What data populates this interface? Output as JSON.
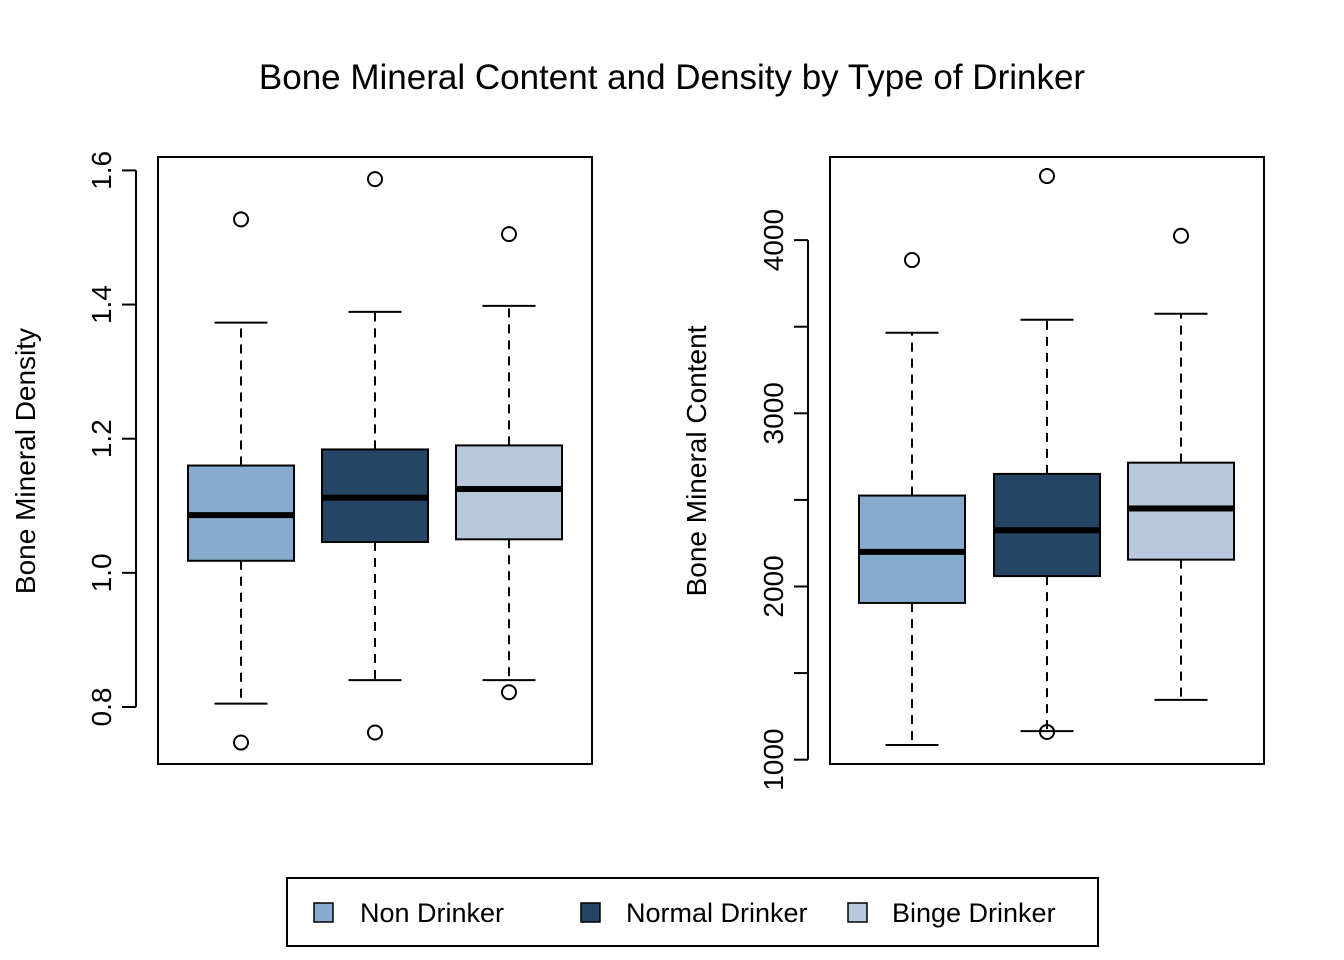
{
  "chart_data": {
    "title": "Bone Mineral Content and Density by Type of Drinker",
    "legend": {
      "position": "bottom",
      "entries": [
        {
          "name": "Non Drinker",
          "color": "#87ABCE"
        },
        {
          "name": "Normal Drinker",
          "color": "#244563"
        },
        {
          "name": "Binge Drinker",
          "color": "#B8C9DD"
        }
      ]
    },
    "panels": [
      {
        "type": "boxplot",
        "ylabel": "Bone Mineral Density",
        "ylim": [
          0.715,
          1.62
        ],
        "yticks": [
          0.8,
          1.0,
          1.2,
          1.4,
          1.6
        ],
        "ytick_labels": [
          "0.8",
          "1.0",
          "1.2",
          "1.4",
          "1.6"
        ],
        "grid": false,
        "boxes": [
          {
            "group": "Non Drinker",
            "whisker_low": 0.805,
            "q1": 1.018,
            "median": 1.086,
            "q3": 1.16,
            "whisker_high": 1.373,
            "outliers": [
              1.527,
              0.747
            ]
          },
          {
            "group": "Normal Drinker",
            "whisker_low": 0.84,
            "q1": 1.046,
            "median": 1.112,
            "q3": 1.184,
            "whisker_high": 1.389,
            "outliers": [
              1.587,
              0.762
            ]
          },
          {
            "group": "Binge Drinker",
            "whisker_low": 0.84,
            "q1": 1.05,
            "median": 1.125,
            "q3": 1.19,
            "whisker_high": 1.398,
            "outliers": [
              1.505,
              0.822
            ]
          }
        ]
      },
      {
        "type": "boxplot",
        "ylabel": "Bone Mineral Content",
        "ylim": [
          975,
          4480
        ],
        "yticks": [
          1000,
          1500,
          2000,
          2500,
          3000,
          3500,
          4000
        ],
        "ytick_labels": [
          "1000",
          "",
          "2000",
          "",
          "3000",
          "",
          "4000"
        ],
        "grid": false,
        "boxes": [
          {
            "group": "Non Drinker",
            "whisker_low": 1085,
            "q1": 1905,
            "median": 2200,
            "q3": 2525,
            "whisker_high": 3465,
            "outliers": [
              3885
            ]
          },
          {
            "group": "Normal Drinker",
            "whisker_low": 1165,
            "q1": 2060,
            "median": 2325,
            "q3": 2650,
            "whisker_high": 3540,
            "outliers": [
              4370,
              1160
            ]
          },
          {
            "group": "Binge Drinker",
            "whisker_low": 1345,
            "q1": 2155,
            "median": 2450,
            "q3": 2715,
            "whisker_high": 3575,
            "outliers": [
              4025
            ]
          }
        ]
      }
    ]
  }
}
